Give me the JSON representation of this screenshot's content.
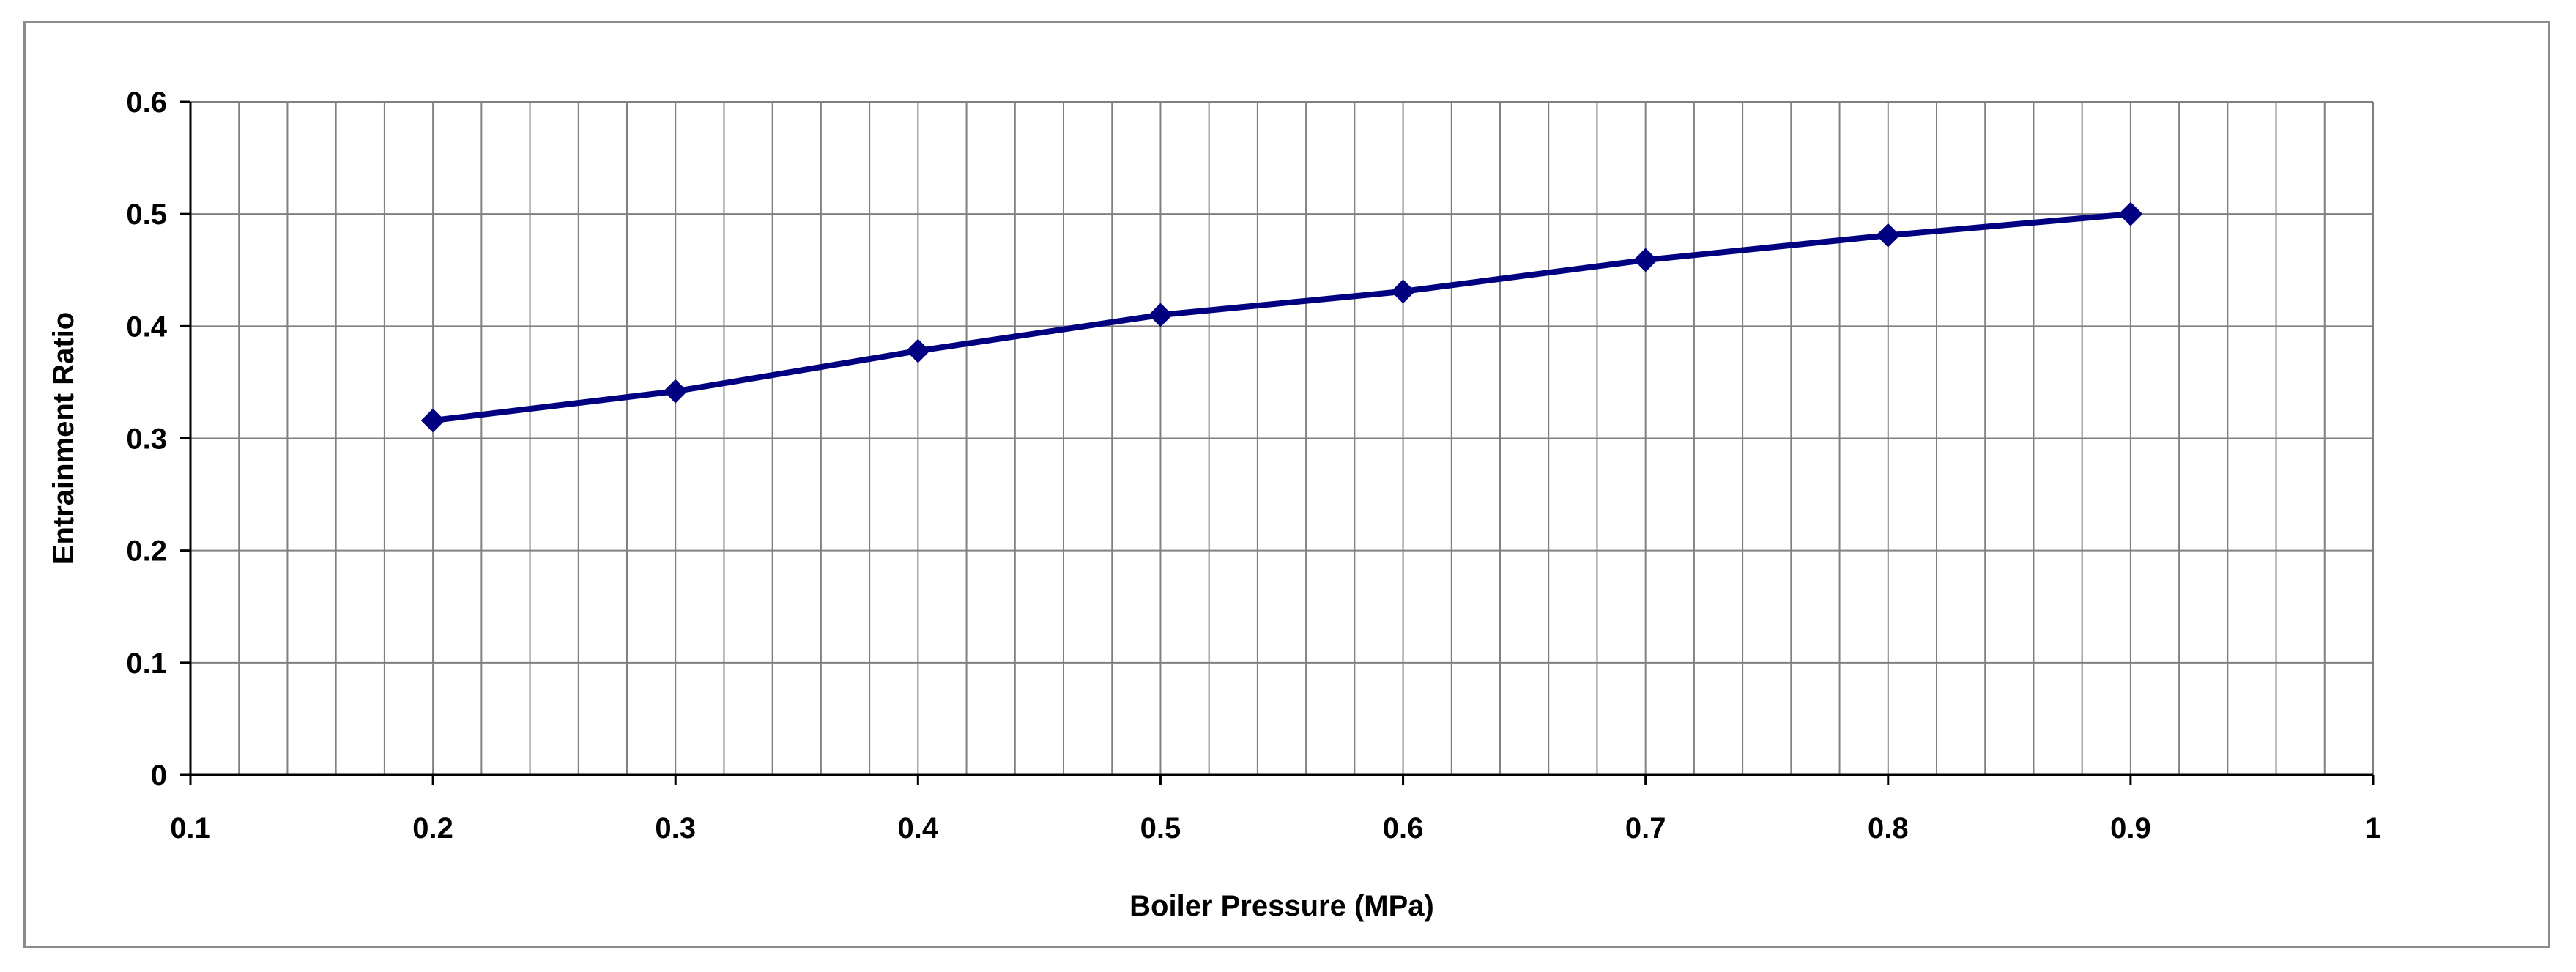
{
  "chart_data": {
    "type": "line",
    "title": "",
    "xlabel": "Boiler Pressure (MPa)",
    "ylabel": "Entrainment Ratio",
    "xlim": [
      0.1,
      1
    ],
    "ylim": [
      0,
      0.6
    ],
    "x_ticks": [
      "0.1",
      "0.2",
      "0.3",
      "0.4",
      "0.5",
      "0.6",
      "0.7",
      "0.8",
      "0.9",
      "1"
    ],
    "y_ticks": [
      "0",
      "0.1",
      "0.2",
      "0.3",
      "0.4",
      "0.5",
      "0.6"
    ],
    "x_minor_step": 0.02,
    "y_major_step": 0.1,
    "grid": true,
    "legend": "none",
    "series": [
      {
        "x": [
          0.2,
          0.3,
          0.4,
          0.5,
          0.6,
          0.7,
          0.8,
          0.9
        ],
        "y": [
          0.316,
          0.342,
          0.378,
          0.41,
          0.431,
          0.459,
          0.481,
          0.5
        ],
        "color": "#000080",
        "marker": "diamond"
      }
    ],
    "colors": {
      "grid": "#808080",
      "axis": "#000000",
      "frame": "#8c8c8c",
      "series": "#000080"
    }
  }
}
